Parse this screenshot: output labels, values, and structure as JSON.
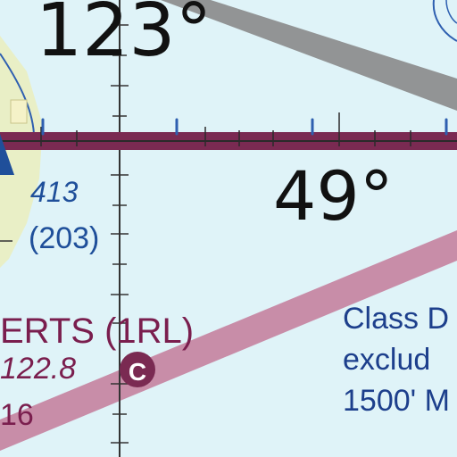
{
  "map": {
    "colors": {
      "background": "#dff3f8",
      "terrain": "#e9efc6",
      "boundary_magenta": "#7a2a52",
      "airway_pink": "#c47a9a",
      "airway_gray": "#8a8a8a",
      "tick_blue": "#2e5fb0",
      "text_navy": "#1d3f8c"
    },
    "meridian_label": "123°",
    "parallel_label": "49°",
    "obstacle": {
      "msl": "413",
      "agl": "(203)"
    },
    "airport": {
      "name": "ERTS (1RL)",
      "frequency": "122.8",
      "ctaf_symbol": "C",
      "extra": "16"
    },
    "airspace_note": {
      "line1": "Class D",
      "line2": "exclud",
      "line3": "1500' M"
    },
    "icons": [
      "obstacle-tower-icon",
      "ctaf-circle-icon"
    ]
  }
}
